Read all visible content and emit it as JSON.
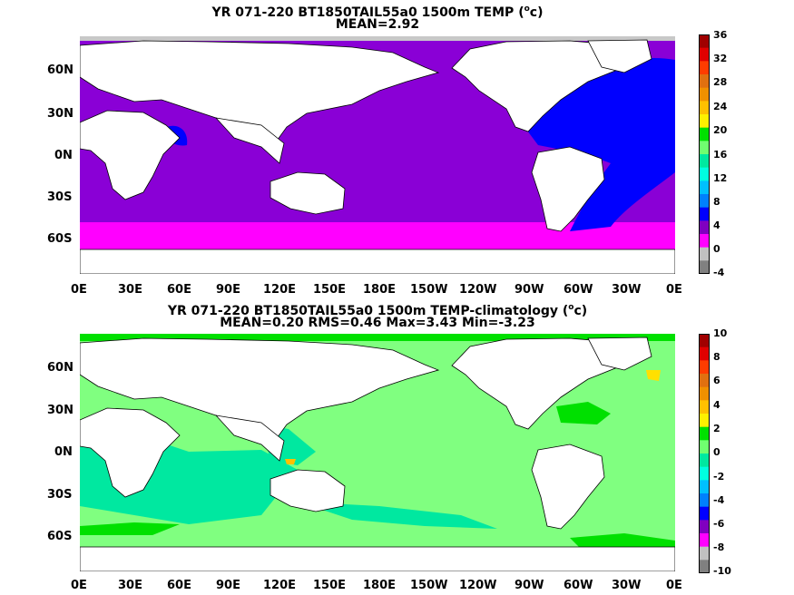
{
  "panels": [
    {
      "title_prefix": "YR 071-220 BT1850TAIL55a0 1500m TEMP (",
      "title_sup": "o",
      "title_suffix": "c)",
      "stats": "MEAN=2.92",
      "colorbar": {
        "labels": [
          "36",
          "32",
          "28",
          "24",
          "20",
          "16",
          "12",
          "8",
          "4",
          "0",
          "-4"
        ],
        "colors": [
          "#a00000",
          "#e00000",
          "#ff3c00",
          "#e07010",
          "#f09000",
          "#ffc000",
          "#fff000",
          "#00e000",
          "#70ff70",
          "#00e8a0",
          "#00ffe0",
          "#00c0ff",
          "#0080ff",
          "#0000ff",
          "#8000c0",
          "#ff00ff",
          "#c0c0c0",
          "#808080"
        ]
      }
    },
    {
      "title_prefix": "YR 071-220 BT1850TAIL55a0 1500m TEMP-climatology (",
      "title_sup": "o",
      "title_suffix": "c)",
      "stats": "MEAN=0.20   RMS=0.46   Max=3.43   Min=-3.23",
      "colorbar": {
        "labels": [
          "10",
          "8",
          "6",
          "4",
          "2",
          "0",
          "-2",
          "-4",
          "-6",
          "-8",
          "-10"
        ],
        "colors": [
          "#a00000",
          "#e00000",
          "#ff3c00",
          "#e07010",
          "#f09000",
          "#ffc000",
          "#fff000",
          "#00e000",
          "#70ff70",
          "#00e8a0",
          "#00ffe0",
          "#00c0ff",
          "#0080ff",
          "#0000ff",
          "#8000c0",
          "#ff00ff",
          "#c0c0c0",
          "#808080"
        ]
      }
    }
  ],
  "lat_labels": [
    "60N",
    "30N",
    "0N",
    "30S",
    "60S"
  ],
  "lon_labels": [
    "0E",
    "30E",
    "60E",
    "90E",
    "120E",
    "150E",
    "180E",
    "150W",
    "120W",
    "90W",
    "60W",
    "30W",
    "0E"
  ]
}
